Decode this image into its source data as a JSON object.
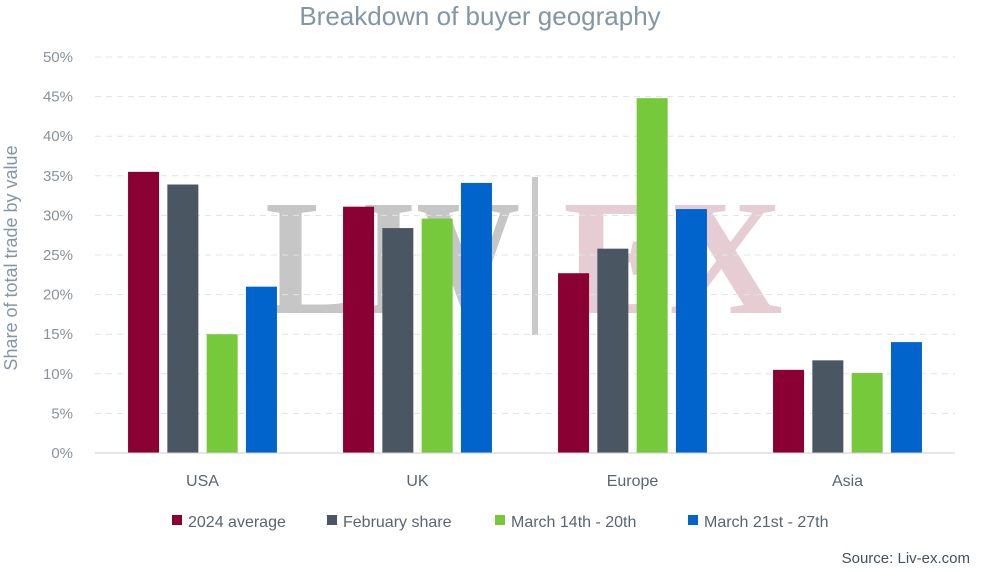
{
  "chart_data": {
    "type": "bar",
    "title": "Breakdown of buyer geography",
    "ylabel": "Share of total trade by value",
    "xlabel": "",
    "categories": [
      "USA",
      "UK",
      "Europe",
      "Asia"
    ],
    "ylim": [
      0,
      50
    ],
    "y_ticks": [
      "0%",
      "5%",
      "10%",
      "15%",
      "20%",
      "25%",
      "30%",
      "35%",
      "40%",
      "45%",
      "50%"
    ],
    "y_tick_values": [
      0,
      5,
      10,
      15,
      20,
      25,
      30,
      35,
      40,
      45,
      50
    ],
    "grid": true,
    "legend_position": "bottom",
    "series": [
      {
        "name": "2024 average",
        "color": "#8a0033",
        "values": [
          35.5,
          31.1,
          22.7,
          10.5
        ]
      },
      {
        "name": "February share",
        "color": "#4a5661",
        "values": [
          33.9,
          28.4,
          25.8,
          11.7
        ]
      },
      {
        "name": "March 14th - 20th",
        "color": "#77c93c",
        "values": [
          15.0,
          29.6,
          44.8,
          10.1
        ]
      },
      {
        "name": "March 21st - 27th",
        "color": "#0064cc",
        "values": [
          21.0,
          34.1,
          30.8,
          14.0
        ]
      }
    ],
    "source": "Source: Liv-ex.com",
    "watermark": {
      "left": "LIV",
      "right": "EX"
    }
  }
}
